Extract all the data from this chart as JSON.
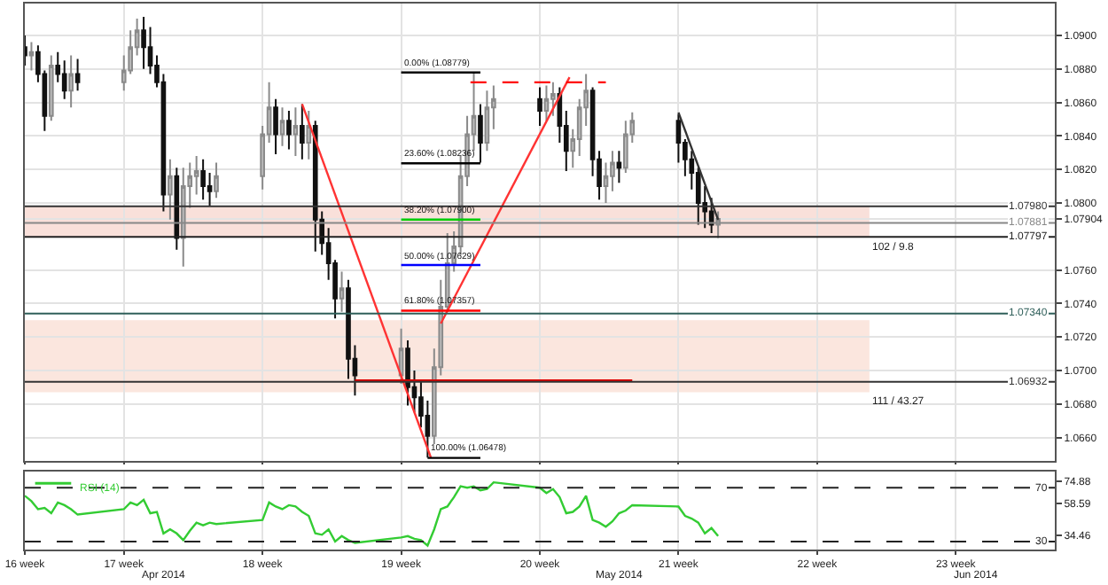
{
  "chart_data": [
    {
      "type": "candlestick",
      "x": [
        "2014-04-16T00:00",
        "2014-04-16T08:00",
        "2014-04-16T16:00",
        "2014-04-17T00:00",
        "2014-04-17T08:00",
        "2014-04-17T16:00",
        "2014-04-18T00:00",
        "2014-04-18T08:00",
        "2014-04-18T16:00",
        "2014-04-21T00:00",
        "2014-04-21T08:00",
        "2014-04-21T16:00",
        "2014-04-22T00:00",
        "2014-04-22T08:00",
        "2014-04-22T16:00",
        "2014-04-23T00:00",
        "2014-04-23T08:00",
        "2014-04-23T16:00",
        "2014-04-24T00:00",
        "2014-04-24T08:00",
        "2014-04-24T16:00",
        "2014-04-25T00:00",
        "2014-04-25T08:00",
        "2014-04-25T16:00",
        "2014-04-28T00:00",
        "2014-04-28T08:00",
        "2014-04-28T16:00",
        "2014-04-29T00:00",
        "2014-04-29T08:00",
        "2014-04-29T16:00",
        "2014-04-30T00:00",
        "2014-04-30T08:00",
        "2014-04-30T16:00",
        "2014-05-01T00:00",
        "2014-05-01T08:00",
        "2014-05-01T16:00",
        "2014-05-02T00:00",
        "2014-05-02T08:00",
        "2014-05-02T16:00",
        "2014-05-05T00:00",
        "2014-05-05T08:00",
        "2014-05-05T16:00",
        "2014-05-06T00:00",
        "2014-05-06T08:00",
        "2014-05-06T16:00",
        "2014-05-07T00:00",
        "2014-05-07T08:00",
        "2014-05-07T16:00",
        "2014-05-08T00:00",
        "2014-05-08T08:00",
        "2014-05-08T16:00",
        "2014-05-09T00:00",
        "2014-05-09T08:00",
        "2014-05-09T16:00",
        "2014-05-12T00:00",
        "2014-05-12T08:00",
        "2014-05-12T16:00",
        "2014-05-13T00:00",
        "2014-05-13T08:00",
        "2014-05-13T16:00",
        "2014-05-14T00:00",
        "2014-05-14T08:00",
        "2014-05-14T16:00",
        "2014-05-15T00:00",
        "2014-05-15T08:00",
        "2014-05-15T16:00",
        "2014-05-16T00:00",
        "2014-05-16T08:00",
        "2014-05-16T16:00",
        "2014-05-19T00:00",
        "2014-05-19T08:00",
        "2014-05-19T16:00",
        "2014-05-20T00:00",
        "2014-05-20T08:00",
        "2014-05-20T16:00",
        "2014-05-21T00:00"
      ],
      "ohlc": [
        [
          1.0893,
          1.09,
          1.0882,
          1.0888
        ],
        [
          1.0888,
          1.0896,
          1.0879,
          1.089
        ],
        [
          1.089,
          1.0894,
          1.0872,
          1.0877
        ],
        [
          1.0877,
          1.0879,
          1.0843,
          1.0852
        ],
        [
          1.0852,
          1.0888,
          1.0849,
          1.0882
        ],
        [
          1.0882,
          1.089,
          1.0872,
          1.0877
        ],
        [
          1.0877,
          1.0885,
          1.0862,
          1.0867
        ],
        [
          1.0867,
          1.0888,
          1.0857,
          1.0877
        ],
        [
          1.0877,
          1.0886,
          1.0867,
          1.0872
        ],
        [
          1.0872,
          1.0888,
          1.0867,
          1.0879
        ],
        [
          1.0879,
          1.0903,
          1.0877,
          1.0893
        ],
        [
          1.0893,
          1.091,
          1.0888,
          1.0903
        ],
        [
          1.0903,
          1.0911,
          1.088,
          1.0893
        ],
        [
          1.0893,
          1.0905,
          1.0877,
          1.0882
        ],
        [
          1.0882,
          1.0888,
          1.0869,
          1.0872
        ],
        [
          1.0872,
          1.0877,
          1.0795,
          1.0805
        ],
        [
          1.0805,
          1.0826,
          1.079,
          1.0816
        ],
        [
          1.0816,
          1.0821,
          1.0772,
          1.0779
        ],
        [
          1.0779,
          1.0821,
          1.0762,
          1.081
        ],
        [
          1.081,
          1.0824,
          1.0797,
          1.0816
        ],
        [
          1.0816,
          1.0828,
          1.0805,
          1.0819
        ],
        [
          1.0819,
          1.0826,
          1.0802,
          1.081
        ],
        [
          1.081,
          1.0818,
          1.0798,
          1.0807
        ],
        [
          1.0807,
          1.0824,
          1.0803,
          1.0816
        ],
        [
          1.0816,
          1.0846,
          1.0808,
          1.0841
        ],
        [
          1.0841,
          1.0872,
          1.0836,
          1.0857
        ],
        [
          1.0857,
          1.0862,
          1.0829,
          1.0841
        ],
        [
          1.0841,
          1.0857,
          1.0834,
          1.0849
        ],
        [
          1.0849,
          1.0855,
          1.0832,
          1.0841
        ],
        [
          1.0841,
          1.0857,
          1.0828,
          1.0846
        ],
        [
          1.0846,
          1.0859,
          1.0826,
          1.0836
        ],
        [
          1.0836,
          1.0855,
          1.0826,
          1.0846
        ],
        [
          1.0846,
          1.0849,
          1.0771,
          1.079
        ],
        [
          1.079,
          1.0795,
          1.0769,
          1.0776
        ],
        [
          1.0776,
          1.0785,
          1.0754,
          1.0764
        ],
        [
          1.0764,
          1.0766,
          1.0731,
          1.0743
        ],
        [
          1.0743,
          1.0759,
          1.0735,
          1.0749
        ],
        [
          1.0749,
          1.0754,
          1.0695,
          1.0707
        ],
        [
          1.0707,
          1.0715,
          1.0685,
          1.0697
        ],
        [
          1.0697,
          1.0725,
          1.0692,
          1.0713
        ],
        [
          1.0713,
          1.0718,
          1.0679,
          1.069
        ],
        [
          1.069,
          1.07,
          1.0675,
          1.0684
        ],
        [
          1.0684,
          1.0694,
          1.0666,
          1.0673
        ],
        [
          1.0673,
          1.0682,
          1.0648,
          1.0661
        ],
        [
          1.0661,
          1.0713,
          1.0656,
          1.0702
        ],
        [
          1.0702,
          1.0754,
          1.0697,
          1.0738
        ],
        [
          1.0738,
          1.0782,
          1.0735,
          1.0764
        ],
        [
          1.0764,
          1.0783,
          1.0759,
          1.0774
        ],
        [
          1.0774,
          1.0828,
          1.0769,
          1.0816
        ],
        [
          1.0816,
          1.0852,
          1.081,
          1.0841
        ],
        [
          1.0841,
          1.0878,
          1.0831,
          1.0852
        ],
        [
          1.0852,
          1.0859,
          1.0824,
          1.0836
        ],
        [
          1.0836,
          1.0867,
          1.0831,
          1.0857
        ],
        [
          1.0857,
          1.087,
          1.0844,
          1.0862
        ],
        [
          1.0862,
          1.0869,
          1.0846,
          1.0855
        ],
        [
          1.0855,
          1.087,
          1.0849,
          1.0862
        ],
        [
          1.0862,
          1.0872,
          1.0852,
          1.0865
        ],
        [
          1.0865,
          1.0869,
          1.0836,
          1.0846
        ],
        [
          1.0846,
          1.0855,
          1.0819,
          1.0831
        ],
        [
          1.0831,
          1.0844,
          1.0821,
          1.0838
        ],
        [
          1.0838,
          1.0862,
          1.0828,
          1.0857
        ],
        [
          1.0857,
          1.0877,
          1.0846,
          1.0867
        ],
        [
          1.0867,
          1.0869,
          1.0816,
          1.0826
        ],
        [
          1.0826,
          1.0831,
          1.0802,
          1.081
        ],
        [
          1.081,
          1.0824,
          1.08,
          1.0816
        ],
        [
          1.0816,
          1.0831,
          1.0807,
          1.0824
        ],
        [
          1.0824,
          1.0831,
          1.0812,
          1.0821
        ],
        [
          1.0821,
          1.0849,
          1.0818,
          1.0841
        ],
        [
          1.0841,
          1.0854,
          1.0836,
          1.0849
        ],
        [
          1.0849,
          1.0853,
          1.0824,
          1.0836
        ],
        [
          1.0836,
          1.0838,
          1.0816,
          1.0826
        ],
        [
          1.0826,
          1.0831,
          1.0808,
          1.0818
        ],
        [
          1.0818,
          1.0821,
          1.0787,
          1.08
        ],
        [
          1.08,
          1.081,
          1.0785,
          1.0795
        ],
        [
          1.0795,
          1.0803,
          1.0782,
          1.0787
        ],
        [
          1.0787,
          1.0795,
          1.0779,
          1.07904
        ]
      ],
      "series": [
        {
          "type": "line",
          "color": "#ff3333",
          "x": [
            "2014-04-30T00:00",
            "2014-05-06T12:00"
          ],
          "values": [
            1.0859,
            1.0648
          ]
        },
        {
          "type": "line",
          "color": "#ff3333",
          "x": [
            "2014-05-07T00:00",
            "2014-05-13T12:00"
          ],
          "values": [
            1.0728,
            1.0875
          ]
        },
        {
          "type": "line",
          "color": "#ff0000",
          "line_style": "dashed",
          "x": [
            "2014-05-08T12:00",
            "2014-05-15T08:00"
          ],
          "values": [
            1.0872,
            1.0872
          ]
        },
        {
          "type": "line",
          "color": "#333333",
          "x": [
            "2014-05-19T00:00",
            "2014-05-21T00:00"
          ],
          "values": [
            1.0854,
            1.079
          ]
        },
        {
          "type": "line",
          "color": "#dd0000",
          "x": [
            "2014-05-02T16:00",
            "2014-05-16T16:00"
          ],
          "values": [
            1.0694,
            1.0694
          ]
        },
        {
          "type": "line",
          "color": "#000000",
          "x": [
            "2014-05-05T00:00",
            "2014-05-09T00:00"
          ],
          "values": [
            1.08779,
            1.08779
          ]
        },
        {
          "type": "line",
          "color": "#000000",
          "x": [
            "2014-05-05T00:00",
            "2014-05-09T00:00"
          ],
          "values": [
            1.08236,
            1.08236
          ]
        },
        {
          "type": "line",
          "color": "#00cc00",
          "x": [
            "2014-05-05T00:00",
            "2014-05-09T00:00"
          ],
          "values": [
            1.079,
            1.079
          ]
        },
        {
          "type": "line",
          "color": "#0000ff",
          "x": [
            "2014-05-05T00:00",
            "2014-05-09T00:00"
          ],
          "values": [
            1.07629,
            1.07629
          ]
        },
        {
          "type": "line",
          "color": "#ff0000",
          "x": [
            "2014-05-05T00:00",
            "2014-05-09T00:00"
          ],
          "values": [
            1.07357,
            1.07357
          ]
        },
        {
          "type": "line",
          "color": "#000000",
          "x": [
            "2014-05-06T08:00",
            "2014-05-09T00:00"
          ],
          "values": [
            1.06478,
            1.06478
          ]
        }
      ],
      "xlim": [
        "2014-04-16",
        "2014-06-07"
      ],
      "xticks": [
        {
          "value": "2014-04-16",
          "label": null
        },
        {
          "value": "2014-04-21",
          "label": null
        },
        {
          "value": "2014-04-28",
          "label": null
        },
        {
          "value": "2014-05-05",
          "label": null
        },
        {
          "value": "2014-05-12",
          "label": null
        },
        {
          "value": "2014-05-19",
          "label": null
        },
        {
          "value": "2014-05-26",
          "label": null
        },
        {
          "value": "2014-06-02",
          "label": null
        }
      ],
      "ylim": [
        1.0646,
        1.0919
      ],
      "yticks": [
        {
          "value": 1.09,
          "label": "1.0900"
        },
        {
          "value": 1.088,
          "label": "1.0880"
        },
        {
          "value": 1.086,
          "label": "1.0860"
        },
        {
          "value": 1.084,
          "label": "1.0840"
        },
        {
          "value": 1.082,
          "label": "1.0820"
        },
        {
          "value": 1.08,
          "label": "1.0800"
        },
        {
          "value": 1.07904,
          "label": "1.07904"
        },
        {
          "value": 1.076,
          "label": "1.0760"
        },
        {
          "value": 1.074,
          "label": "1.0740"
        },
        {
          "value": 1.072,
          "label": "1.0720"
        },
        {
          "value": 1.07,
          "label": "1.0700"
        },
        {
          "value": 1.068,
          "label": "1.0680"
        },
        {
          "value": 1.066,
          "label": "1.0660"
        }
      ],
      "grid": true,
      "tick_labels": "y",
      "ref_lines": [
        {
          "axis": "y",
          "value": 1.0798,
          "label": "1.07980",
          "color": "#333333"
        },
        {
          "axis": "y",
          "value": 1.07881,
          "label": "1.07881",
          "color": "#888888"
        },
        {
          "axis": "y",
          "value": 1.07797,
          "label": "1.07797",
          "color": "#222222"
        },
        {
          "axis": "y",
          "value": 1.0734,
          "label": "1.07340",
          "color": "#2f5f5a"
        },
        {
          "axis": "y",
          "value": 1.06932,
          "label": "1.06932",
          "color": "#333333"
        }
      ],
      "bands": [
        {
          "axis": "y",
          "from": 1.07797,
          "to": 1.0798,
          "label": "102 / 9.8",
          "color": "#f9e0da"
        },
        {
          "axis": "y",
          "from": 1.0687,
          "to": 1.073,
          "label": "111 / 43.27",
          "color": "#fbe6de"
        }
      ],
      "annotations": [
        {
          "text": "0.00% (1.08779)",
          "x": "2014-05-05T00:00",
          "y": 1.08779
        },
        {
          "text": "23.60% (1.08236)",
          "x": "2014-05-05T00:00",
          "y": 1.08236
        },
        {
          "text": "38.20% (1.07900)",
          "x": "2014-05-05T00:00",
          "y": 1.079
        },
        {
          "text": "50.00% (1.07629)",
          "x": "2014-05-05T00:00",
          "y": 1.07629
        },
        {
          "text": "61.80% (1.07357)",
          "x": "2014-05-05T00:00",
          "y": 1.07357
        },
        {
          "text": "100.00% (1.06478)",
          "x": "2014-05-06T08:00",
          "y": 1.06478
        }
      ]
    },
    {
      "type": "line",
      "x": [
        "2014-04-16T00:00",
        "2014-04-16T08:00",
        "2014-04-16T16:00",
        "2014-04-17T00:00",
        "2014-04-17T08:00",
        "2014-04-17T16:00",
        "2014-04-18T00:00",
        "2014-04-18T08:00",
        "2014-04-18T16:00",
        "2014-04-21T00:00",
        "2014-04-21T08:00",
        "2014-04-21T16:00",
        "2014-04-22T00:00",
        "2014-04-22T08:00",
        "2014-04-22T16:00",
        "2014-04-23T00:00",
        "2014-04-23T08:00",
        "2014-04-23T16:00",
        "2014-04-24T00:00",
        "2014-04-24T08:00",
        "2014-04-24T16:00",
        "2014-04-25T00:00",
        "2014-04-25T08:00",
        "2014-04-25T16:00",
        "2014-04-28T00:00",
        "2014-04-28T08:00",
        "2014-04-28T16:00",
        "2014-04-29T00:00",
        "2014-04-29T08:00",
        "2014-04-29T16:00",
        "2014-04-30T00:00",
        "2014-04-30T08:00",
        "2014-04-30T16:00",
        "2014-05-01T00:00",
        "2014-05-01T08:00",
        "2014-05-01T16:00",
        "2014-05-02T00:00",
        "2014-05-02T08:00",
        "2014-05-02T16:00",
        "2014-05-05T00:00",
        "2014-05-05T08:00",
        "2014-05-05T16:00",
        "2014-05-06T00:00",
        "2014-05-06T08:00",
        "2014-05-06T16:00",
        "2014-05-07T00:00",
        "2014-05-07T08:00",
        "2014-05-07T16:00",
        "2014-05-08T00:00",
        "2014-05-08T08:00",
        "2014-05-08T16:00",
        "2014-05-09T00:00",
        "2014-05-09T08:00",
        "2014-05-09T16:00",
        "2014-05-12T00:00",
        "2014-05-12T08:00",
        "2014-05-12T16:00",
        "2014-05-13T00:00",
        "2014-05-13T08:00",
        "2014-05-13T16:00",
        "2014-05-14T00:00",
        "2014-05-14T08:00",
        "2014-05-14T16:00",
        "2014-05-15T00:00",
        "2014-05-15T08:00",
        "2014-05-15T16:00",
        "2014-05-16T00:00",
        "2014-05-16T08:00",
        "2014-05-16T16:00",
        "2014-05-19T00:00",
        "2014-05-19T08:00",
        "2014-05-19T16:00",
        "2014-05-20T00:00",
        "2014-05-20T08:00",
        "2014-05-20T16:00",
        "2014-05-21T00:00"
      ],
      "series": [
        {
          "name": "RSI (14)",
          "color": "#33cc33",
          "values": [
            64,
            60,
            54,
            55,
            51,
            59,
            57,
            54,
            50,
            54,
            59,
            57,
            61,
            51,
            52,
            36,
            39,
            36,
            31,
            38,
            44,
            42,
            44,
            43,
            46,
            59,
            56,
            54,
            57,
            56,
            52,
            49,
            36,
            35,
            39,
            30,
            34,
            31,
            29,
            33,
            34,
            32,
            31,
            27,
            39,
            54,
            56,
            63,
            71,
            70,
            71,
            68,
            69,
            74,
            70,
            66,
            69,
            63,
            51,
            52,
            56,
            64,
            46,
            44,
            41,
            45,
            51,
            53,
            57,
            56,
            49,
            47,
            44,
            36,
            40,
            34
          ]
        }
      ],
      "xlim": [
        "2014-04-16",
        "2014-06-07"
      ],
      "xticks": [
        {
          "value": "2014-04-16",
          "label": "16 week"
        },
        {
          "value": "2014-04-21",
          "label": "17 week"
        },
        {
          "value": "2014-04-28",
          "label": "18 week"
        },
        {
          "value": "2014-05-05",
          "label": "19 week"
        },
        {
          "value": "2014-05-12",
          "label": "20 week"
        },
        {
          "value": "2014-05-19",
          "label": "21 week"
        },
        {
          "value": "2014-05-26",
          "label": "22 week"
        },
        {
          "value": "2014-06-02",
          "label": "23 week"
        }
      ],
      "ylim": [
        24,
        82
      ],
      "yticks": [
        74.88,
        58.59,
        34.46
      ],
      "x2lim": [
        "2014-04-16",
        "2014-06-07"
      ],
      "x2ticks": [
        {
          "value": "2014-04-23",
          "label": "Apr 2014"
        },
        {
          "value": "2014-05-16",
          "label": "May 2014"
        },
        {
          "value": "2014-06-03",
          "label": "Jun 2014"
        }
      ],
      "grid": "x",
      "legend": "top left",
      "ref_lines": [
        {
          "axis": "y",
          "value": 70,
          "label": "70",
          "line_style": "dashed",
          "color": "#222222"
        },
        {
          "axis": "y",
          "value": 30,
          "label": "30",
          "line_style": "dashed",
          "color": "#222222"
        }
      ]
    }
  ]
}
